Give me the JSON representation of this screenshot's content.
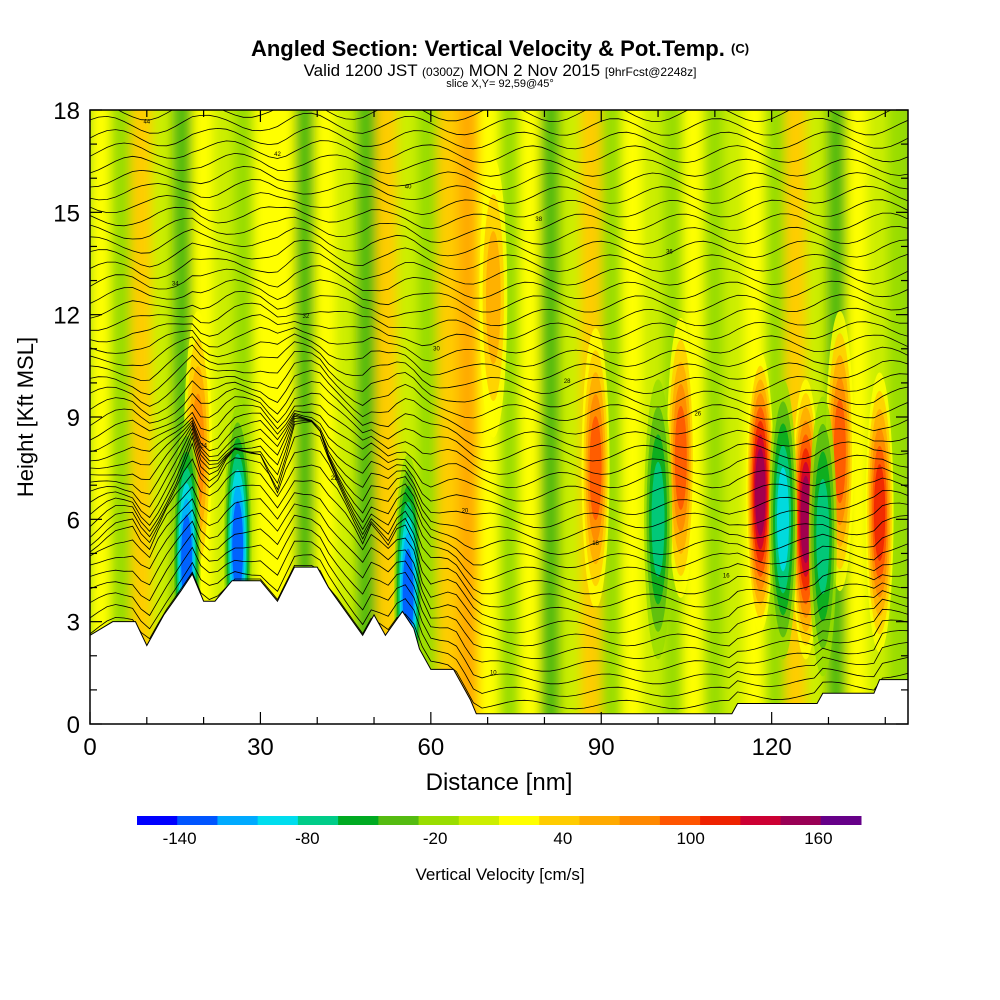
{
  "header": {
    "title": "Angled Section: Vertical Velocity & Pot.Temp.",
    "title_tag": "(C)",
    "valid_prefix": "Valid 1200 JST",
    "valid_utc": "(0300Z)",
    "valid_date": "MON 2 Nov 2015",
    "forecast_tag": "[9hrFcst@2248z]",
    "slice": "slice X,Y= 92,59@45°"
  },
  "chart_data": {
    "type": "heatmap",
    "xlabel": "Distance [nm]",
    "ylabel": "Height [Kft MSL]",
    "xlim": [
      0,
      144
    ],
    "ylim": [
      0,
      18
    ],
    "xticks": [
      0,
      30,
      60,
      90,
      120
    ],
    "yticks": [
      0,
      3,
      6,
      9,
      12,
      15,
      18
    ],
    "colorbar": {
      "label": "Vertical Velocity [cm/s]",
      "min": -160,
      "max": 180,
      "step": 20,
      "tick_labels": [
        -140,
        -80,
        -20,
        40,
        100,
        160
      ],
      "colors": [
        "#0000ff",
        "#0055ff",
        "#00aaff",
        "#00ddee",
        "#00cc88",
        "#00aa22",
        "#55bb11",
        "#99dd00",
        "#ccee00",
        "#ffff00",
        "#ffcc00",
        "#ffaa00",
        "#ff8800",
        "#ff5500",
        "#ee2200",
        "#cc0033",
        "#990055",
        "#660088"
      ]
    },
    "terrain": [
      [
        0,
        2.6
      ],
      [
        4,
        3.0
      ],
      [
        8,
        3.0
      ],
      [
        10,
        2.3
      ],
      [
        13,
        3.2
      ],
      [
        16,
        3.9
      ],
      [
        18,
        4.4
      ],
      [
        20,
        3.6
      ],
      [
        22,
        3.6
      ],
      [
        25,
        4.2
      ],
      [
        30,
        4.2
      ],
      [
        33,
        3.6
      ],
      [
        36,
        4.6
      ],
      [
        40,
        4.6
      ],
      [
        42,
        4.0
      ],
      [
        45,
        3.3
      ],
      [
        48,
        2.6
      ],
      [
        50,
        3.2
      ],
      [
        52,
        2.6
      ],
      [
        55,
        3.3
      ],
      [
        57,
        2.8
      ],
      [
        58,
        2.2
      ],
      [
        60,
        1.6
      ],
      [
        64,
        1.6
      ],
      [
        67,
        0.7
      ],
      [
        68,
        0.3
      ],
      [
        80,
        0.3
      ],
      [
        113,
        0.3
      ],
      [
        114,
        0.6
      ],
      [
        128,
        0.6
      ],
      [
        129,
        0.9
      ],
      [
        138,
        0.9
      ],
      [
        139,
        1.3
      ],
      [
        144,
        1.3
      ]
    ],
    "updrafts": [
      {
        "x": 19,
        "y": 8.0,
        "value": 85
      },
      {
        "x": 71,
        "y": 12.5,
        "value": 70
      },
      {
        "x": 89,
        "y": 7.5,
        "value": 105
      },
      {
        "x": 104,
        "y": 7.8,
        "value": 110
      },
      {
        "x": 118,
        "y": 6.8,
        "value": 175
      },
      {
        "x": 126,
        "y": 6.0,
        "value": 170
      },
      {
        "x": 132,
        "y": 8.0,
        "value": 110
      },
      {
        "x": 139,
        "y": 6.2,
        "value": 125
      }
    ],
    "downdrafts": [
      {
        "x": 17,
        "y": 4.8,
        "value": -140
      },
      {
        "x": 26,
        "y": 5.2,
        "value": -150
      },
      {
        "x": 56,
        "y": 3.8,
        "value": -150
      },
      {
        "x": 100,
        "y": 6.0,
        "value": -90
      },
      {
        "x": 122,
        "y": 6.0,
        "value": -100
      },
      {
        "x": 129,
        "y": 5.5,
        "value": -80
      }
    ],
    "isentrope_labels": [
      "44",
      "42",
      "40",
      "38",
      "36",
      "34",
      "32",
      "30",
      "28",
      "26",
      "24",
      "22",
      "20",
      "18",
      "16",
      "14",
      "12",
      "10"
    ]
  }
}
